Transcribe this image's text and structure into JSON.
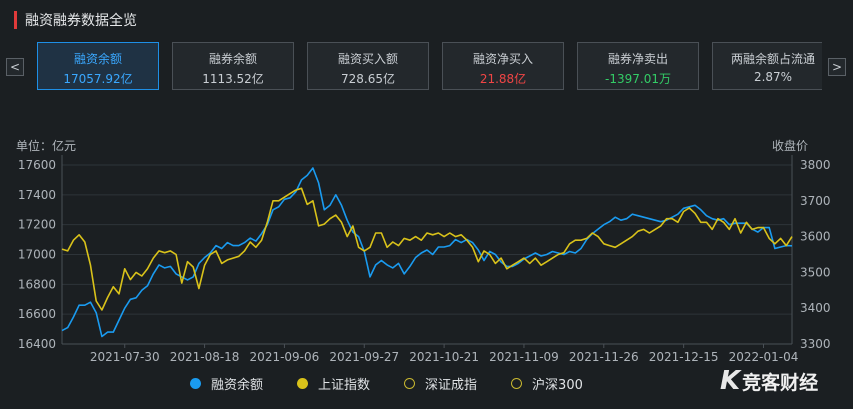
{
  "header": {
    "title": "融资融券数据全览"
  },
  "nav": {
    "prev_icon": "<",
    "next_icon": ">"
  },
  "cards": [
    {
      "label": "融资余额",
      "value": "17057.92亿",
      "tone": "active"
    },
    {
      "label": "融券余额",
      "value": "1113.52亿",
      "tone": "normal"
    },
    {
      "label": "融资买入额",
      "value": "728.65亿",
      "tone": "normal"
    },
    {
      "label": "融资净买入",
      "value": "21.88亿",
      "tone": "pos"
    },
    {
      "label": "融券净卖出",
      "value": "-1397.01万",
      "tone": "neg"
    },
    {
      "label": "两融余额占流通",
      "value": "2.87%",
      "tone": "normal"
    }
  ],
  "colors": {
    "series1": "#1a9bf0",
    "series2": "#d9c21a",
    "series3": "#c9b830",
    "series4": "#c9b830"
  },
  "chart_data": {
    "type": "line",
    "y_left_label": "单位：亿元",
    "y_right_label": "收盘价",
    "y_left_ticks": [
      16400,
      16600,
      16800,
      17000,
      17200,
      17400,
      17600
    ],
    "y_right_ticks": [
      3300,
      3400,
      3500,
      3600,
      3700,
      3800
    ],
    "y_left_range": [
      16400,
      17600
    ],
    "y_right_range": [
      3300,
      3800
    ],
    "x_tick_labels": [
      "2021-07-30",
      "2021-08-18",
      "2021-09-06",
      "2021-09-27",
      "2021-10-21",
      "2021-11-09",
      "2021-11-26",
      "2021-12-15",
      "2022-01-04"
    ],
    "x_tick_index": [
      11,
      25,
      39,
      53,
      67,
      81,
      95,
      109,
      123
    ],
    "series": [
      {
        "name": "融资余额",
        "axis": "left",
        "color": "#1a9bf0",
        "values": [
          16490,
          16510,
          16580,
          16660,
          16660,
          16680,
          16610,
          16450,
          16480,
          16480,
          16560,
          16640,
          16700,
          16710,
          16760,
          16790,
          16870,
          16930,
          16910,
          16920,
          16870,
          16850,
          16830,
          16850,
          16940,
          16980,
          17010,
          17060,
          17040,
          17080,
          17060,
          17060,
          17080,
          17110,
          17090,
          17140,
          17200,
          17300,
          17320,
          17370,
          17380,
          17420,
          17500,
          17530,
          17580,
          17480,
          17300,
          17330,
          17400,
          17330,
          17230,
          17150,
          17120,
          17020,
          16850,
          16930,
          16960,
          16930,
          16910,
          16940,
          16870,
          16920,
          16980,
          17010,
          17030,
          17000,
          17050,
          17050,
          17060,
          17100,
          17080,
          17100,
          17080,
          17030,
          16960,
          17020,
          17000,
          16950,
          16920,
          16920,
          16940,
          16970,
          16990,
          17010,
          16990,
          17000,
          17020,
          17010,
          17000,
          17020,
          17010,
          17040,
          17100,
          17140,
          17170,
          17200,
          17220,
          17250,
          17230,
          17240,
          17270,
          17260,
          17250,
          17240,
          17230,
          17220,
          17230,
          17250,
          17270,
          17310,
          17320,
          17330,
          17300,
          17260,
          17240,
          17230,
          17240,
          17200,
          17210,
          17210,
          17210,
          17170,
          17150,
          17180,
          17180,
          17040,
          17050,
          17060,
          17058
        ]
      },
      {
        "name": "上证指数",
        "axis": "right",
        "color": "#d9c21a",
        "values": [
          3565,
          3560,
          3590,
          3605,
          3585,
          3520,
          3420,
          3395,
          3430,
          3460,
          3440,
          3510,
          3480,
          3500,
          3490,
          3510,
          3540,
          3560,
          3555,
          3560,
          3550,
          3470,
          3530,
          3515,
          3455,
          3520,
          3550,
          3560,
          3525,
          3535,
          3540,
          3545,
          3560,
          3585,
          3570,
          3590,
          3640,
          3700,
          3700,
          3710,
          3720,
          3730,
          3735,
          3690,
          3700,
          3630,
          3635,
          3650,
          3660,
          3640,
          3600,
          3630,
          3570,
          3560,
          3570,
          3610,
          3610,
          3570,
          3585,
          3575,
          3595,
          3590,
          3600,
          3590,
          3610,
          3605,
          3610,
          3600,
          3610,
          3600,
          3605,
          3590,
          3570,
          3530,
          3560,
          3550,
          3525,
          3540,
          3510,
          3520,
          3530,
          3540,
          3525,
          3540,
          3520,
          3530,
          3540,
          3550,
          3555,
          3580,
          3590,
          3590,
          3595,
          3610,
          3600,
          3580,
          3575,
          3570,
          3580,
          3590,
          3600,
          3615,
          3620,
          3610,
          3620,
          3630,
          3650,
          3650,
          3640,
          3670,
          3680,
          3665,
          3640,
          3640,
          3620,
          3650,
          3640,
          3620,
          3650,
          3610,
          3640,
          3620,
          3625,
          3625,
          3595,
          3580,
          3595,
          3575,
          3600
        ]
      }
    ]
  },
  "legend": [
    {
      "name": "融资余额",
      "style": "filled",
      "color": "#1a9bf0"
    },
    {
      "name": "上证指数",
      "style": "filled",
      "color": "#d9c21a"
    },
    {
      "name": "深证成指",
      "style": "hollow",
      "color": "#c9b830"
    },
    {
      "name": "沪深300",
      "style": "hollow",
      "color": "#c9b830"
    }
  ],
  "logo": {
    "mark": "K",
    "text": "竞客财经"
  }
}
